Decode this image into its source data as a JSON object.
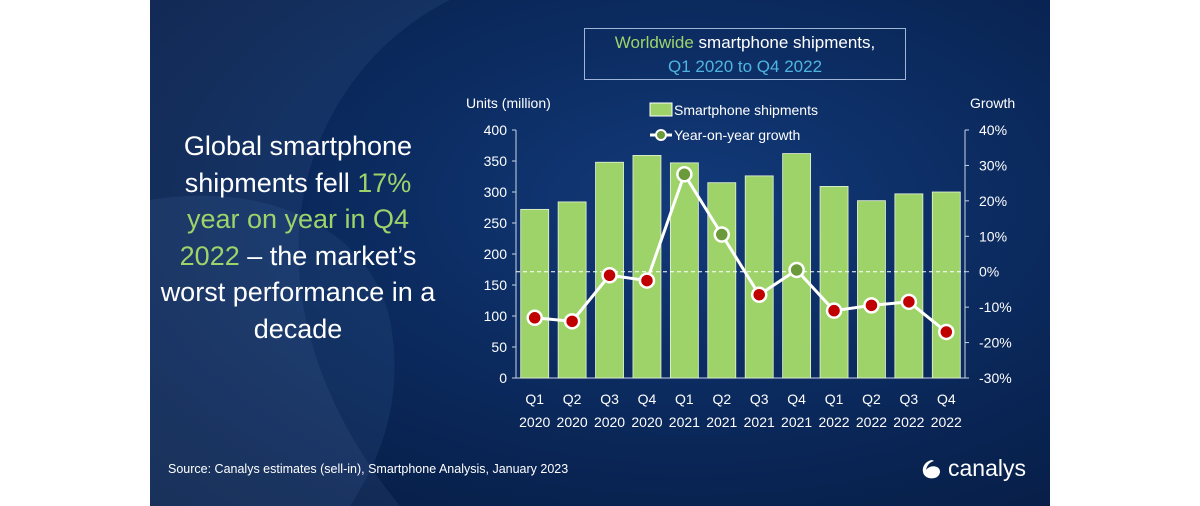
{
  "headline": {
    "part1": "Global smartphone shipments fell ",
    "highlight": "17% year on year in Q4 2022",
    "part2": " – the market’s worst performance in a decade"
  },
  "title_box": {
    "line1_highlight": "Worldwide",
    "line1_rest": " smartphone shipments,",
    "line2": "Q1 2020 to Q4 2022"
  },
  "source": "Source: Canalys estimates (sell-in), Smartphone Analysis, January 2023",
  "logo": "canalys",
  "colors": {
    "background": "#0b2a5e",
    "bar": "#9ed36a",
    "positive_point": "#6b9a3a",
    "negative_point": "#c00000",
    "line": "#ffffff",
    "highlight": "#9ed36a",
    "subtitle": "#4fb5e0"
  },
  "chart_data": {
    "type": "bar+line",
    "title": "Worldwide smartphone shipments, Q1 2020 to Q4 2022",
    "ylabel": "Units (million)",
    "y2label": "Growth",
    "ylim": [
      0,
      400
    ],
    "yticks": [
      "0",
      "50",
      "100",
      "150",
      "200",
      "250",
      "300",
      "350",
      "400"
    ],
    "y2lim": [
      -30,
      40
    ],
    "y2ticks": [
      "-30%",
      "-20%",
      "-10%",
      "0%",
      "10%",
      "20%",
      "30%",
      "40%"
    ],
    "grid": false,
    "zero_growth_reference_line": "dashed",
    "legend_placement": "top-center",
    "categories": [
      [
        "Q1",
        "2020"
      ],
      [
        "Q2",
        "2020"
      ],
      [
        "Q3",
        "2020"
      ],
      [
        "Q4",
        "2020"
      ],
      [
        "Q1",
        "2021"
      ],
      [
        "Q2",
        "2021"
      ],
      [
        "Q3",
        "2021"
      ],
      [
        "Q4",
        "2021"
      ],
      [
        "Q1",
        "2022"
      ],
      [
        "Q2",
        "2022"
      ],
      [
        "Q3",
        "2022"
      ],
      [
        "Q4",
        "2022"
      ]
    ],
    "series": [
      {
        "name": "Smartphone shipments",
        "type": "bar",
        "axis": "left",
        "values": [
          272,
          284,
          348,
          359,
          347,
          315,
          326,
          362,
          309,
          286,
          297,
          300
        ]
      },
      {
        "name": "Year-on-year growth",
        "type": "line",
        "axis": "right",
        "values": [
          -13,
          -14,
          -1,
          -2.5,
          27.5,
          10.5,
          -6.5,
          0.5,
          -11,
          -9.5,
          -8.5,
          -17
        ]
      }
    ]
  }
}
